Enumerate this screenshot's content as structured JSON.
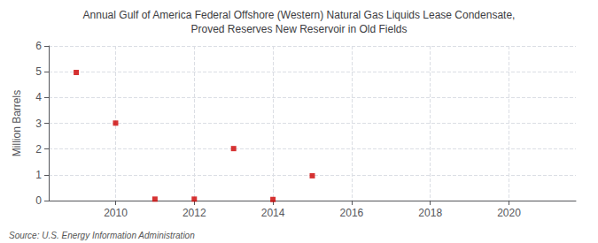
{
  "chart_data": {
    "type": "scatter",
    "title": "Annual Gulf of America Federal Offshore (Western) Natural Gas Liquids Lease Condensate,\nProved Reserves New Reservoir in Old Fields",
    "ylabel": "Million Barrels",
    "annotations": [
      "Source: U.S. Energy Information Administration"
    ],
    "x": [
      2009,
      2010,
      2011,
      2012,
      2013,
      2014,
      2015
    ],
    "values": [
      4.972,
      3.007,
      0.057,
      0.057,
      2.018,
      0.043,
      0.963
    ],
    "color": "#cc0000",
    "marker": "square",
    "xlim": [
      2008.3,
      2021.7
    ],
    "xticks": [
      2010,
      2012,
      2014,
      2016,
      2018,
      2020
    ],
    "ylim": [
      0,
      6
    ],
    "yticks": [
      0,
      1,
      2,
      3,
      4,
      5,
      6
    ],
    "grid": true
  }
}
